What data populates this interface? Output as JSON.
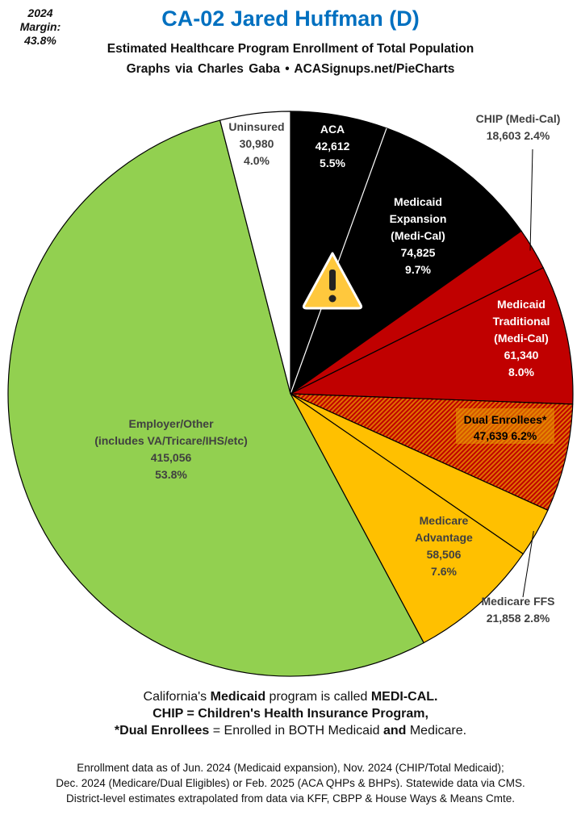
{
  "margin_label": "2024 Margin:",
  "margin_value": "43.8%",
  "header": {
    "title": "CA-02 Jared Huffman (D)",
    "subtitle": "Estimated Healthcare Program Enrollment of Total Population",
    "credit": "Graphs via Charles Gaba  •  ACASignups.net/PieCharts"
  },
  "chart_data": {
    "type": "pie",
    "title": "CA-02 Jared Huffman (D)",
    "start": "top",
    "direction": "clockwise",
    "slices": [
      {
        "name": "ACA",
        "value": 42612,
        "percent": 5.5,
        "color": "#000000",
        "text_color": "#ffffff",
        "lines": [
          "ACA",
          "42,612",
          "5.5%"
        ]
      },
      {
        "name": "Medicaid Expansion (Medi-Cal)",
        "value": 74825,
        "percent": 9.7,
        "color": "#000000",
        "text_color": "#ffffff",
        "lines": [
          "Medicaid",
          "Expansion",
          "(Medi-Cal)",
          "74,825",
          "9.7%"
        ]
      },
      {
        "name": "CHIP (Medi-Cal)",
        "value": 18603,
        "percent": 2.4,
        "color": "#c00000",
        "text_color": "#404040",
        "lines": [
          "CHIP (Medi-Cal)",
          "18,603 2.4%"
        ]
      },
      {
        "name": "Medicaid Traditional (Medi-Cal)",
        "value": 61340,
        "percent": 8.0,
        "color": "#c00000",
        "text_color": "#ffffff",
        "lines": [
          "Medicaid",
          "Traditional",
          "(Medi-Cal)",
          "61,340",
          "8.0%"
        ]
      },
      {
        "name": "Dual Enrollees*",
        "value": 47639,
        "percent": 6.2,
        "color": "#c00000",
        "pattern": "hatched-orange",
        "text_color": "#000000",
        "lines": [
          "Dual Enrollees*",
          "47,639 6.2%"
        ]
      },
      {
        "name": "Medicare FFS",
        "value": 21858,
        "percent": 2.8,
        "color": "#ffc000",
        "text_color": "#404040",
        "lines": [
          "Medicare FFS",
          "21,858 2.8%"
        ]
      },
      {
        "name": "Medicare Advantage",
        "value": 58506,
        "percent": 7.6,
        "color": "#ffc000",
        "text_color": "#404040",
        "lines": [
          "Medicare",
          "Advantage",
          "58,506",
          "7.6%"
        ]
      },
      {
        "name": "Employer/Other (includes VA/Tricare/IHS/etc)",
        "value": 415056,
        "percent": 53.8,
        "color": "#92d050",
        "text_color": "#404040",
        "lines": [
          "Employer/Other",
          "(includes VA/Tricare/IHS/etc)",
          "415,056",
          "53.8%"
        ]
      },
      {
        "name": "Uninsured",
        "value": 30980,
        "percent": 4.0,
        "color": "#ffffff",
        "text_color": "#404040",
        "lines": [
          "Uninsured",
          "30,980",
          "4.0%"
        ]
      }
    ],
    "icon": "warning-icon"
  },
  "notes": {
    "line1_a": "California's ",
    "line1_b": "Medicaid",
    "line1_c": " program is called ",
    "line1_d": "MEDI-CAL.",
    "line2": "CHIP = Children's Health Insurance Program,",
    "line3_a": "*Dual Enrollees",
    "line3_b": " = Enrolled in BOTH Medicaid ",
    "line3_c": "and",
    "line3_d": " Medicare."
  },
  "sources": [
    "Enrollment data as of Jun. 2024 (Medicaid expansion), Nov. 2024 (CHIP/Total Medicaid);",
    "Dec. 2024 (Medicare/Dual Eligibles) or Feb. 2025 (ACA QHPs & BHPs). Statewide data via CMS.",
    "District-level estimates extrapolated from data via KFF, CBPP & House Ways & Means Cmte."
  ]
}
